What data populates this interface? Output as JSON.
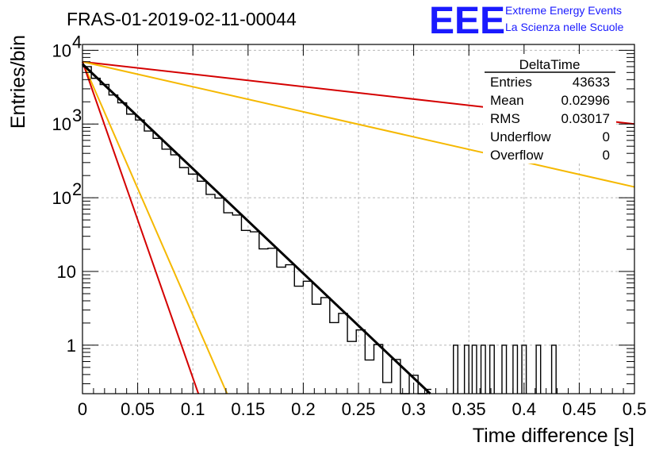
{
  "title": "FRAS-01-2019-02-11-00044",
  "logo": {
    "mark": "EEE",
    "line1": "Extreme Energy Events",
    "line2": "La Scienza nelle Scuole",
    "color": "#1a1aff"
  },
  "stats": {
    "header": "DeltaTime",
    "rows": [
      {
        "label": "Entries",
        "value": "43633"
      },
      {
        "label": "Mean",
        "value": "0.02996"
      },
      {
        "label": "RMS",
        "value": "0.03017"
      },
      {
        "label": "Underflow",
        "value": "0"
      },
      {
        "label": "Overflow",
        "value": "0"
      }
    ]
  },
  "chart_data": {
    "type": "histogram",
    "title": "FRAS-01-2019-02-11-00044",
    "xlabel": "Time difference [s]",
    "ylabel": "Entries/bin",
    "xlim": [
      0,
      0.5
    ],
    "ylim": [
      0.22,
      12000
    ],
    "yscale": "log",
    "grid": true,
    "xticks": [
      "0",
      "0.05",
      "0.1",
      "0.15",
      "0.2",
      "0.25",
      "0.3",
      "0.35",
      "0.4",
      "0.45",
      "0.5"
    ],
    "yticks": [
      {
        "value": 1,
        "label": "1"
      },
      {
        "value": 10,
        "label": "10"
      },
      {
        "value": 100,
        "label": "10",
        "exp": "2"
      },
      {
        "value": 1000,
        "label": "10",
        "exp": "3"
      },
      {
        "value": 10000,
        "label": "10",
        "exp": "4"
      }
    ],
    "bin_width": 0.004,
    "histogram_points": [
      [
        0.002,
        6000
      ],
      [
        0.01,
        4300
      ],
      [
        0.018,
        3300
      ],
      [
        0.026,
        2500
      ],
      [
        0.034,
        1900
      ],
      [
        0.042,
        1420
      ],
      [
        0.05,
        1080
      ],
      [
        0.058,
        820
      ],
      [
        0.066,
        620
      ],
      [
        0.074,
        470
      ],
      [
        0.082,
        360
      ],
      [
        0.09,
        270
      ],
      [
        0.098,
        205
      ],
      [
        0.106,
        155
      ],
      [
        0.114,
        118
      ],
      [
        0.122,
        90
      ],
      [
        0.13,
        68
      ],
      [
        0.138,
        52
      ],
      [
        0.146,
        40
      ],
      [
        0.154,
        30
      ],
      [
        0.162,
        23
      ],
      [
        0.17,
        17.5
      ],
      [
        0.178,
        13.3
      ],
      [
        0.186,
        10.1
      ],
      [
        0.194,
        7.7
      ],
      [
        0.202,
        5.9
      ],
      [
        0.21,
        4.5
      ],
      [
        0.218,
        3.4
      ],
      [
        0.226,
        2.6
      ],
      [
        0.234,
        2.0
      ],
      [
        0.242,
        1.5
      ],
      [
        0.25,
        1.15
      ],
      [
        0.258,
        0.9
      ],
      [
        0.266,
        0.68
      ],
      [
        0.274,
        0.52
      ],
      [
        0.282,
        0.4
      ],
      [
        0.29,
        0.3
      ],
      [
        0.298,
        0.23
      ],
      [
        0.306,
        0.18
      ],
      [
        0.314,
        0.14
      ]
    ],
    "histogram_spikes": [
      [
        0.338,
        1
      ],
      [
        0.348,
        1
      ],
      [
        0.355,
        1
      ],
      [
        0.363,
        1
      ],
      [
        0.371,
        1
      ],
      [
        0.382,
        1
      ],
      [
        0.392,
        1
      ],
      [
        0.4,
        1
      ],
      [
        0.413,
        1
      ],
      [
        0.427,
        1
      ]
    ],
    "series": [
      {
        "name": "",
        "color": "#000000",
        "kind": "line",
        "x": [
          0,
          0.315
        ],
        "y": [
          6500,
          0.22
        ]
      },
      {
        "name": "",
        "color": "#d40000",
        "kind": "line",
        "x": [
          0,
          0.5
        ],
        "y": [
          7000,
          1000
        ]
      },
      {
        "name": "",
        "color": "#f5b800",
        "kind": "line",
        "x": [
          0,
          0.5
        ],
        "y": [
          7000,
          140
        ]
      },
      {
        "name": "",
        "color": "#f5b800",
        "kind": "line",
        "x": [
          0,
          0.131
        ],
        "y": [
          7000,
          0.22
        ]
      },
      {
        "name": "",
        "color": "#d40000",
        "kind": "line",
        "x": [
          0,
          0.105
        ],
        "y": [
          7000,
          0.22
        ]
      }
    ]
  }
}
